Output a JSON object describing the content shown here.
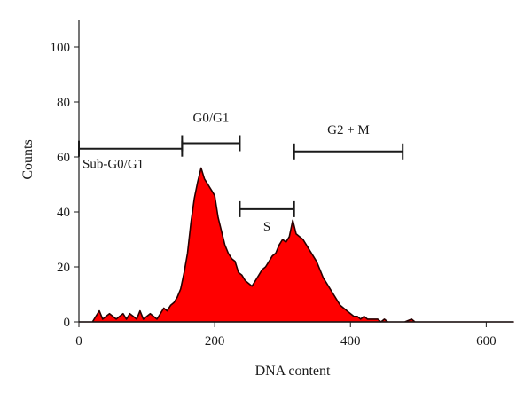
{
  "chart_data": {
    "type": "area",
    "title": "",
    "xlabel": "DNA content",
    "ylabel": "Counts",
    "xlim": [
      0,
      640
    ],
    "ylim": [
      0,
      110
    ],
    "x_ticks": [
      0,
      200,
      400,
      600
    ],
    "x_tick_labels": [
      "0",
      "200",
      "400",
      "600"
    ],
    "y_ticks": [
      0,
      20,
      40,
      60,
      80,
      100
    ],
    "y_tick_labels": [
      "0",
      "20",
      "40",
      "60",
      "80",
      "100"
    ],
    "grid": false,
    "fill_color": "#ff0000",
    "series": [
      {
        "x": [
          0,
          20,
          25,
          30,
          35,
          40,
          45,
          50,
          55,
          60,
          65,
          70,
          75,
          80,
          85,
          90,
          95,
          100,
          105,
          110,
          115,
          120,
          125,
          130,
          135,
          140,
          145,
          150,
          155,
          160,
          165,
          170,
          175,
          180,
          185,
          190,
          195,
          200,
          205,
          210,
          215,
          220,
          225,
          230,
          235,
          240,
          245,
          250,
          255,
          260,
          265,
          270,
          275,
          280,
          285,
          290,
          295,
          300,
          305,
          310,
          315,
          320,
          325,
          330,
          335,
          340,
          345,
          350,
          355,
          360,
          365,
          370,
          375,
          380,
          385,
          390,
          395,
          400,
          405,
          410,
          415,
          420,
          425,
          430,
          435,
          440,
          445,
          450,
          455,
          460,
          470,
          480,
          490,
          495,
          500,
          510,
          520,
          640
        ],
        "values": [
          0,
          0,
          2,
          4,
          1,
          2,
          3,
          2,
          1,
          2,
          3,
          1,
          3,
          2,
          1,
          4,
          1,
          2,
          3,
          2,
          1,
          3,
          5,
          4,
          6,
          7,
          9,
          12,
          18,
          25,
          36,
          45,
          51,
          56,
          52,
          50,
          48,
          46,
          38,
          33,
          28,
          25,
          23,
          22,
          18,
          17,
          15,
          14,
          13,
          15,
          17,
          19,
          20,
          22,
          24,
          25,
          28,
          30,
          29,
          31,
          37,
          32,
          31,
          30,
          28,
          26,
          24,
          22,
          19,
          16,
          14,
          12,
          10,
          8,
          6,
          5,
          4,
          3,
          2,
          2,
          1,
          2,
          1,
          1,
          1,
          1,
          0,
          1,
          0,
          0,
          0,
          0,
          1,
          0,
          0,
          0,
          0,
          0
        ]
      }
    ],
    "gates": [
      {
        "label": "Sub-G0/G1",
        "x_start": 0,
        "x_end": 152,
        "y": 63
      },
      {
        "label": "G0/G1",
        "x_start": 152,
        "x_end": 237,
        "y": 65
      },
      {
        "label": "S",
        "x_start": 237,
        "x_end": 317,
        "y": 41
      },
      {
        "label": "G2 + M",
        "x_start": 317,
        "x_end": 477,
        "y": 62
      }
    ]
  }
}
